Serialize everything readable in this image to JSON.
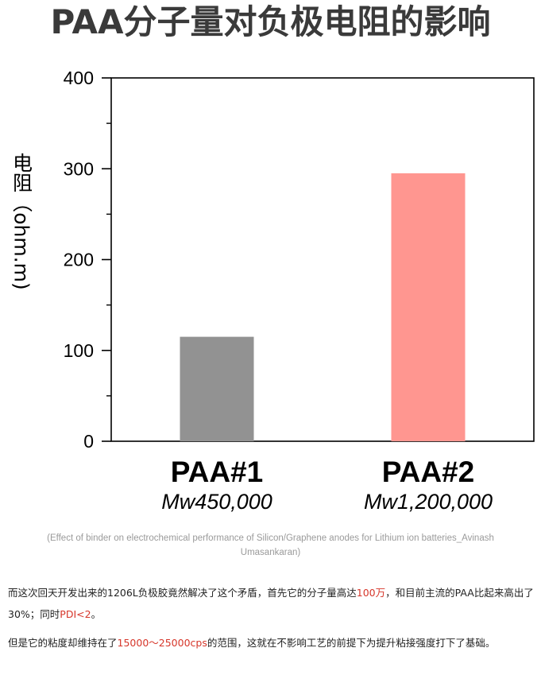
{
  "chart_data": {
    "type": "bar",
    "title": "PAA分子量对负极电阻的影响",
    "ylabel": "电阻（ohm.m)",
    "xlabel": "",
    "ylim": [
      0,
      400
    ],
    "y_ticks": [
      "0",
      "100",
      "200",
      "300",
      "400"
    ],
    "categories": [
      "PAA#1",
      "PAA#2"
    ],
    "category_sublabels": [
      "Mw450,000",
      "Mw1,200,000"
    ],
    "values": [
      115,
      295
    ],
    "bar_colors": [
      "#929292",
      "#ff9690"
    ],
    "grid": false,
    "legend": "none"
  },
  "caption": "(Effect of binder on electrochemical performance of Silicon/Graphene anodes for Lithium ion batteries_Avinash Umasankaran)",
  "paragraph1": {
    "p1": "而这次回天开发出来的1206L负极胶竟然解决了这个矛盾，首先它的分子量高达",
    "h1": "100万",
    "p2": "，和目前主流的PAA比起来高出了30%；同时",
    "h2": "PDI<2",
    "p3": "。"
  },
  "paragraph2": {
    "p1": "但是它的粘度却维持在了",
    "h1": "15000～25000cps",
    "p2": "的范围，这就在不影响工艺的前提下为提升粘接强度打下了基础。"
  }
}
